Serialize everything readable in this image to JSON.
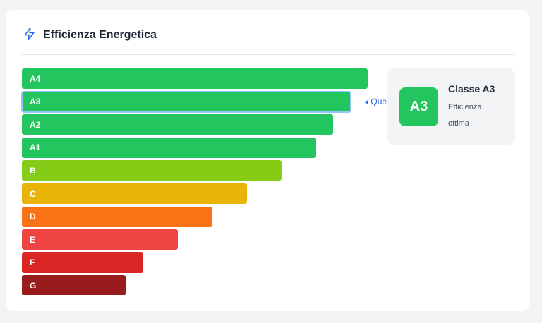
{
  "header": {
    "title": "Efficienza Energetica",
    "icon": "lightning-icon",
    "accent": "#2563eb"
  },
  "scale": {
    "classes": [
      {
        "label": "A4",
        "color": "#22c55e",
        "relative_length": 1.0
      },
      {
        "label": "A3",
        "color": "#22c55e",
        "relative_length": 0.95
      },
      {
        "label": "A2",
        "color": "#22c55e",
        "relative_length": 0.9
      },
      {
        "label": "A1",
        "color": "#22c55e",
        "relative_length": 0.85
      },
      {
        "label": "B",
        "color": "#84cc16",
        "relative_length": 0.75
      },
      {
        "label": "C",
        "color": "#eab308",
        "relative_length": 0.65
      },
      {
        "label": "D",
        "color": "#f97316",
        "relative_length": 0.55
      },
      {
        "label": "E",
        "color": "#ef4444",
        "relative_length": 0.45
      },
      {
        "label": "F",
        "color": "#dc2626",
        "relative_length": 0.35
      },
      {
        "label": "G",
        "color": "#991b1b",
        "relative_length": 0.3
      }
    ],
    "current_index": 1,
    "pointer_label": "◂ Questo immobile"
  },
  "summary": {
    "badge": "A3",
    "title": "Classe A3",
    "description": "Efficienza ottima",
    "color": "#22c55e"
  }
}
